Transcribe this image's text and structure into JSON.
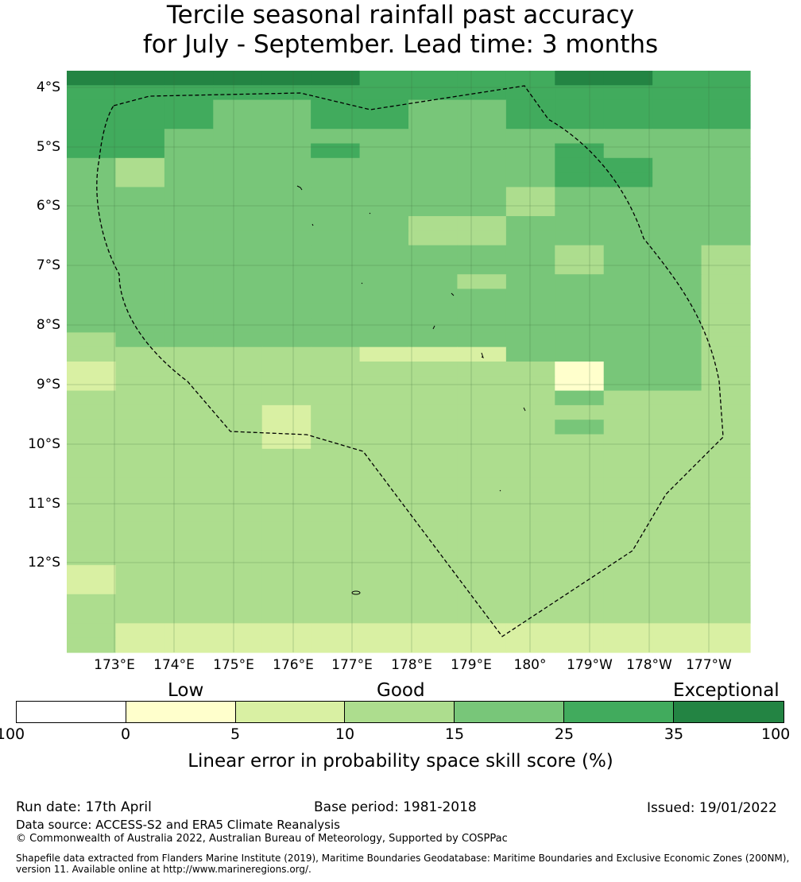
{
  "title_line1": "Tercile seasonal rainfall past accuracy",
  "title_line2": "for July - September. Lead time: 3 months",
  "lat_labels": [
    "4°S",
    "5°S",
    "6°S",
    "7°S",
    "8°S",
    "9°S",
    "10°S",
    "11°S",
    "12°S"
  ],
  "lon_labels": [
    "173°E",
    "174°E",
    "175°E",
    "176°E",
    "177°E",
    "178°E",
    "179°E",
    "180°",
    "179°W",
    "178°W",
    "177°W"
  ],
  "colorbar": {
    "categories": [
      "Low",
      "Good",
      "Exceptional"
    ],
    "ticks": [
      "-100",
      "0",
      "5",
      "10",
      "15",
      "25",
      "35",
      "100"
    ],
    "colors": [
      "#ffffff",
      "#ffffcc",
      "#d9f0a3",
      "#addd8e",
      "#78c679",
      "#41ab5d",
      "#238443"
    ],
    "title": "Linear error in probability space skill score (%)"
  },
  "map_data": {
    "value_classes": "0:<0, 1:0-5, 2:5-10, 3:10-15, 4:15-25, 5:25-35, 6:>35",
    "grid": [
      "66666655556655",
      "55555555555555",
      "55544554455555",
      "55544554455555",
      "55444444444444",
      "55444544445444",
      "43444444445544",
      "43444444445544",
      "44444444434444",
      "44444444434444",
      "44444443344444",
      "44444443344444",
      "44444444443443",
      "44444444443443",
      "44444444344443",
      "44444444444443",
      "44444444444443",
      "44444444444443",
      "34444444444443",
      "33333322244443",
      "23333333331443",
      "23333333331443",
      "33333333334333",
      "33332333333333",
      "33332333334333",
      "33332333333333",
      "33333333333333",
      "33333333333333",
      "33333333333333",
      "33333333333333",
      "33333333333333",
      "33333333333333",
      "33333333333333",
      "33333333333333",
      "23333333333333",
      "23333333333333",
      "33333333333333",
      "33333333333333",
      "32222222222222",
      "32222222222222"
    ],
    "cells": [
      "2233333333",
      "3322333333",
      "3322333333",
      "2233333333",
      "2233333333",
      "2233333333",
      "3333333333"
    ]
  },
  "footer": {
    "run_date": "Run date: 17th April",
    "base_period": "Base period: 1981-2018",
    "issued": "Issued: 19/01/2022",
    "data_source": "Data source: ACCESS-S2 and ERA5 Climate Reanalysis",
    "copyright": "© Commonwealth of Australia 2022, Australian Bureau of Meteorology, Supported by COSPPac",
    "shapefile_line1": "Shapefile data extracted from Flanders Marine Institute (2019), Maritime Boundaries Geodatabase: Maritime Boundaries and Exclusive Economic Zones (200NM),",
    "shapefile_line2": "version 11. Available online at http://www.marineregions.org/."
  }
}
